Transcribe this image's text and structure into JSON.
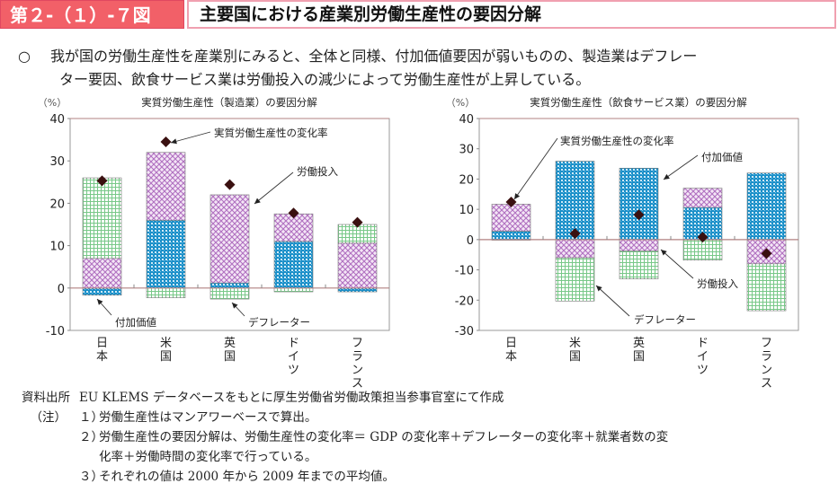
{
  "header": {
    "figure_number": "第２-（１）-７図",
    "title": "主要国における産業別労働生産性の要因分解"
  },
  "summary": {
    "bullet": "○",
    "line1": "我が国の労働生産性を産業別にみると、全体と同様、付加価値要因が弱いものの、製造業はデフレー",
    "line2": "ター要因、飲食サービス業は労働投入の減少によって労働生産性が上昇している。"
  },
  "colors": {
    "value_added": "#1a8fc8",
    "labor_input": "#c88fd0",
    "deflator": "#8fd09a",
    "diamond": "#3a1010",
    "zero_line": "#b08080",
    "frame": "#999999"
  },
  "chart_data": [
    {
      "type": "bar",
      "stacked": true,
      "title": "実質労働生産性（製造業）の要因分解",
      "unit_label": "（%）",
      "categories": [
        "日本",
        "米国",
        "英国",
        "ドイツ",
        "フランス"
      ],
      "ylim": [
        -10,
        40
      ],
      "yticks": [
        -10,
        0,
        10,
        20,
        30,
        40
      ],
      "series": [
        {
          "name": "付加価値",
          "key": "value_added",
          "values": [
            -1.7,
            16.0,
            1.2,
            11.0,
            -0.9
          ]
        },
        {
          "name": "労働投入",
          "key": "labor_input",
          "values": [
            7.0,
            16.0,
            20.8,
            6.5,
            10.6
          ]
        },
        {
          "name": "デフレーター",
          "key": "deflator",
          "values": [
            19.0,
            -2.3,
            -2.6,
            -0.9,
            4.4
          ]
        }
      ],
      "line_marker": {
        "name": "実質労働生産性の変化率",
        "values": [
          25.3,
          34.5,
          24.4,
          17.7,
          15.5
        ]
      },
      "annotations": [
        {
          "text": "実質労働生産性の変化率"
        },
        {
          "text": "労働投入"
        },
        {
          "text": "付加価値"
        },
        {
          "text": "デフレーター"
        }
      ]
    },
    {
      "type": "bar",
      "stacked": true,
      "title": "実質労働生産性（飲食サービス業）の要因分解",
      "unit_label": "（%）",
      "categories": [
        "日本",
        "米国",
        "英国",
        "ドイツ",
        "フランス"
      ],
      "ylim": [
        -30,
        40
      ],
      "yticks": [
        -30,
        -20,
        -10,
        0,
        10,
        20,
        30,
        40
      ],
      "series": [
        {
          "name": "付加価値",
          "key": "value_added",
          "values": [
            2.8,
            25.9,
            23.6,
            10.6,
            22.0
          ]
        },
        {
          "name": "労働投入",
          "key": "labor_input",
          "values": [
            8.9,
            -6.0,
            -3.8,
            6.4,
            -8.0
          ]
        },
        {
          "name": "デフレーター",
          "key": "deflator",
          "values": [
            -0.2,
            -14.3,
            -9.2,
            -6.8,
            -15.5
          ]
        }
      ],
      "line_marker": {
        "name": "実質労働生産性の変化率",
        "values": [
          12.4,
          2.0,
          8.2,
          0.8,
          -4.6
        ]
      },
      "annotations": [
        {
          "text": "実質労働生産性の変化率"
        },
        {
          "text": "付加価値"
        },
        {
          "text": "労働投入"
        },
        {
          "text": "デフレーター"
        }
      ]
    }
  ],
  "notes": {
    "source_label": "資料出所",
    "source_text": "EU KLEMS データベースをもとに厚生労働省労働政策担当参事官室にて作成",
    "note_label": "（注）",
    "items": [
      {
        "num": "１）",
        "text": "労働生産性はマンアワーベースで算出。"
      },
      {
        "num": "２）",
        "text": "労働生産性の要因分解は、労働生産性の変化率＝ GDP の変化率＋デフレーターの変化率＋就業者数の変",
        "cont": "化率＋労働時間の変化率で行っている。"
      },
      {
        "num": "３）",
        "text": "それぞれの値は 2000 年から 2009 年までの平均値。"
      }
    ]
  }
}
